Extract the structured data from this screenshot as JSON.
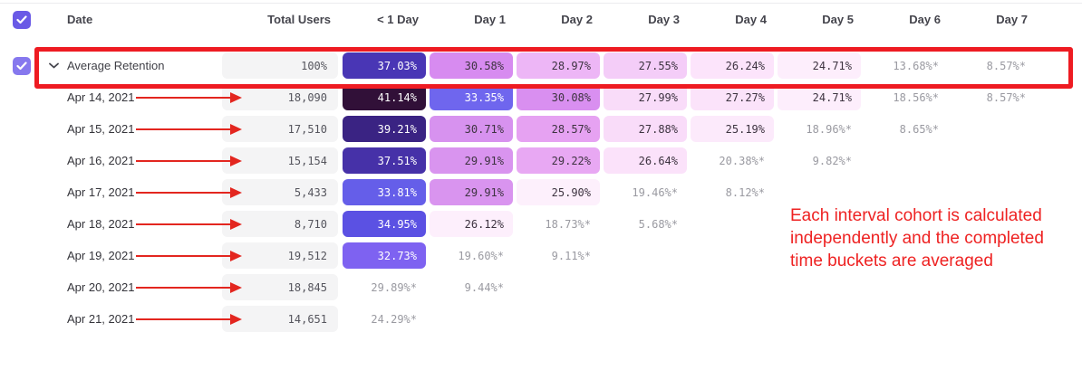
{
  "colors": {
    "accent_purple": "#6a5ae6",
    "avg_checkbox_purple": "#8678ee",
    "annotation_red": "#ee2222",
    "arrow_red": "#e3261f",
    "outline_red": "#ee1b22",
    "total_cell_bg": "#f4f4f5",
    "dark_text": "#3d3340",
    "muted_text": "#9a9aa1"
  },
  "table": {
    "columns": [
      "Date",
      "Total Users",
      "< 1 Day",
      "Day 1",
      "Day 2",
      "Day 3",
      "Day 4",
      "Day 5",
      "Day 6",
      "Day 7"
    ],
    "average_row": {
      "label": "Average Retention",
      "total": "100%",
      "cells": [
        {
          "value": "37.03%",
          "bg": "#4936b5",
          "fg": "#ffffff"
        },
        {
          "value": "30.58%",
          "bg": "#d78bf0",
          "fg": "#3d3340"
        },
        {
          "value": "28.97%",
          "bg": "#edb6f6",
          "fg": "#3d3340"
        },
        {
          "value": "27.55%",
          "bg": "#f4cdf8",
          "fg": "#3d3340"
        },
        {
          "value": "26.24%",
          "bg": "#fce4fb",
          "fg": "#3d3340"
        },
        {
          "value": "24.71%",
          "bg": "#fdeefc",
          "fg": "#3d3340"
        },
        {
          "value": "13.68%*",
          "bg": "",
          "fg": "#9a9aa1"
        },
        {
          "value": "8.57%*",
          "bg": "",
          "fg": "#9a9aa1"
        }
      ]
    },
    "rows": [
      {
        "date": "Apr 14, 2021",
        "total": "18,090",
        "cells": [
          {
            "value": "41.14%",
            "bg": "#311038",
            "fg": "#ffffff"
          },
          {
            "value": "33.35%",
            "bg": "#6f66ee",
            "fg": "#ffffff"
          },
          {
            "value": "30.08%",
            "bg": "#d98ff0",
            "fg": "#3d3340"
          },
          {
            "value": "27.99%",
            "bg": "#f9dcf9",
            "fg": "#3d3340"
          },
          {
            "value": "27.27%",
            "bg": "#fbe3fa",
            "fg": "#3d3340"
          },
          {
            "value": "24.71%",
            "bg": "#fdeefc",
            "fg": "#3d3340"
          },
          {
            "value": "18.56%*",
            "bg": "",
            "fg": "#9a9aa1"
          },
          {
            "value": "8.57%*",
            "bg": "",
            "fg": "#9a9aa1"
          }
        ]
      },
      {
        "date": "Apr 15, 2021",
        "total": "17,510",
        "cells": [
          {
            "value": "39.21%",
            "bg": "#3a2383",
            "fg": "#ffffff"
          },
          {
            "value": "30.71%",
            "bg": "#d792ef",
            "fg": "#3d3340"
          },
          {
            "value": "28.57%",
            "bg": "#e6a2f2",
            "fg": "#3d3340"
          },
          {
            "value": "27.88%",
            "bg": "#f9dcf9",
            "fg": "#3d3340"
          },
          {
            "value": "25.19%",
            "bg": "#fceafb",
            "fg": "#3d3340"
          },
          {
            "value": "18.96%*",
            "bg": "",
            "fg": "#9a9aa1"
          },
          {
            "value": "8.65%*",
            "bg": "",
            "fg": "#9a9aa1"
          }
        ]
      },
      {
        "date": "Apr 16, 2021",
        "total": "15,154",
        "cells": [
          {
            "value": "37.51%",
            "bg": "#4631a8",
            "fg": "#ffffff"
          },
          {
            "value": "29.91%",
            "bg": "#d994ef",
            "fg": "#3d3340"
          },
          {
            "value": "29.22%",
            "bg": "#e8a8f3",
            "fg": "#3d3340"
          },
          {
            "value": "26.64%",
            "bg": "#fbe2fa",
            "fg": "#3d3340"
          },
          {
            "value": "20.38%*",
            "bg": "",
            "fg": "#9a9aa1"
          },
          {
            "value": "9.82%*",
            "bg": "",
            "fg": "#9a9aa1"
          }
        ]
      },
      {
        "date": "Apr 17, 2021",
        "total": "5,433",
        "cells": [
          {
            "value": "33.81%",
            "bg": "#655ee9",
            "fg": "#ffffff"
          },
          {
            "value": "29.91%",
            "bg": "#d994ef",
            "fg": "#3d3340"
          },
          {
            "value": "25.90%",
            "bg": "#fdf0fc",
            "fg": "#3d3340"
          },
          {
            "value": "19.46%*",
            "bg": "",
            "fg": "#9a9aa1"
          },
          {
            "value": "8.12%*",
            "bg": "",
            "fg": "#9a9aa1"
          }
        ]
      },
      {
        "date": "Apr 18, 2021",
        "total": "8,710",
        "cells": [
          {
            "value": "34.95%",
            "bg": "#5b51e3",
            "fg": "#ffffff"
          },
          {
            "value": "26.12%",
            "bg": "#fdeffc",
            "fg": "#3d3340"
          },
          {
            "value": "18.73%*",
            "bg": "",
            "fg": "#9a9aa1"
          },
          {
            "value": "5.68%*",
            "bg": "",
            "fg": "#9a9aa1"
          }
        ]
      },
      {
        "date": "Apr 19, 2021",
        "total": "19,512",
        "cells": [
          {
            "value": "32.73%",
            "bg": "#7e62f1",
            "fg": "#ffffff"
          },
          {
            "value": "19.60%*",
            "bg": "",
            "fg": "#9a9aa1"
          },
          {
            "value": "9.11%*",
            "bg": "",
            "fg": "#9a9aa1"
          }
        ]
      },
      {
        "date": "Apr 20, 2021",
        "total": "18,845",
        "cells": [
          {
            "value": "29.89%*",
            "bg": "",
            "fg": "#9a9aa1"
          },
          {
            "value": "9.44%*",
            "bg": "",
            "fg": "#9a9aa1"
          }
        ]
      },
      {
        "date": "Apr 21, 2021",
        "total": "14,651",
        "cells": [
          {
            "value": "24.29%*",
            "bg": "",
            "fg": "#9a9aa1"
          }
        ]
      }
    ]
  },
  "annotation": {
    "text": "Each interval cohort is calculated independently and the completed time buckets are averaged"
  }
}
